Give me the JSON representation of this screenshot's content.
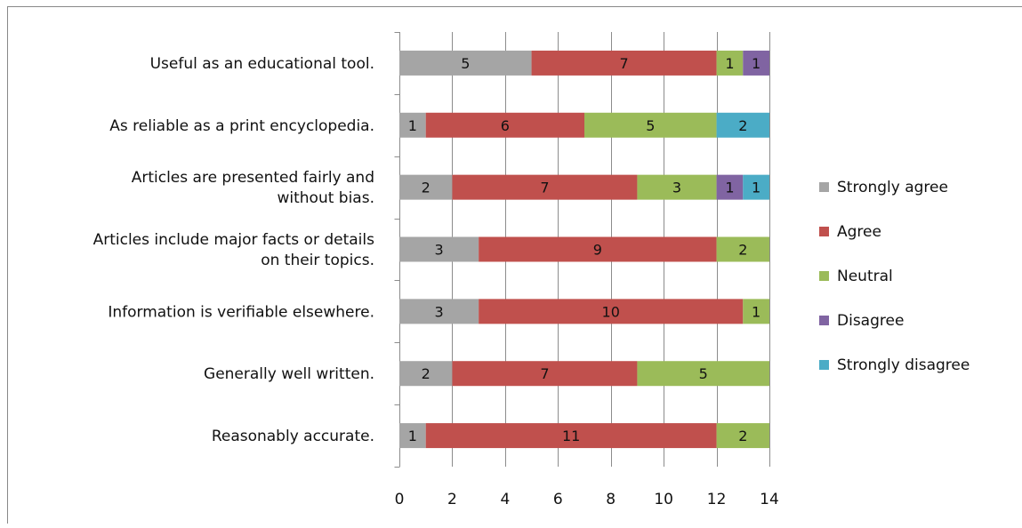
{
  "chart_data": {
    "type": "bar",
    "orientation": "horizontal",
    "stacked": true,
    "title": "",
    "xlabel": "",
    "ylabel": "",
    "xlim": [
      0,
      14
    ],
    "x_ticks": [
      0,
      2,
      4,
      6,
      8,
      10,
      12,
      14
    ],
    "grid": "vertical",
    "legend_position": "right",
    "categories": [
      [
        "Useful as an educational tool."
      ],
      [
        "As reliable as a print encyclopedia."
      ],
      [
        "Articles are presented fairly and",
        "without bias."
      ],
      [
        "Articles include major facts or details",
        "on their topics."
      ],
      [
        "Information is verifiable elsewhere."
      ],
      [
        "Generally well written."
      ],
      [
        "Reasonably accurate."
      ]
    ],
    "series": [
      {
        "name": "Strongly agree",
        "color": "#a5a5a5",
        "values": [
          5,
          1,
          2,
          3,
          3,
          2,
          1
        ]
      },
      {
        "name": "Agree",
        "color": "#c0504d",
        "values": [
          7,
          6,
          7,
          9,
          10,
          7,
          11
        ]
      },
      {
        "name": "Neutral",
        "color": "#9bbb59",
        "values": [
          1,
          5,
          3,
          2,
          1,
          5,
          2
        ]
      },
      {
        "name": "Disagree",
        "color": "#8064a2",
        "values": [
          1,
          0,
          1,
          0,
          0,
          0,
          0
        ]
      },
      {
        "name": "Strongly disagree",
        "color": "#4bacc6",
        "values": [
          0,
          2,
          1,
          0,
          0,
          0,
          0
        ]
      }
    ]
  }
}
